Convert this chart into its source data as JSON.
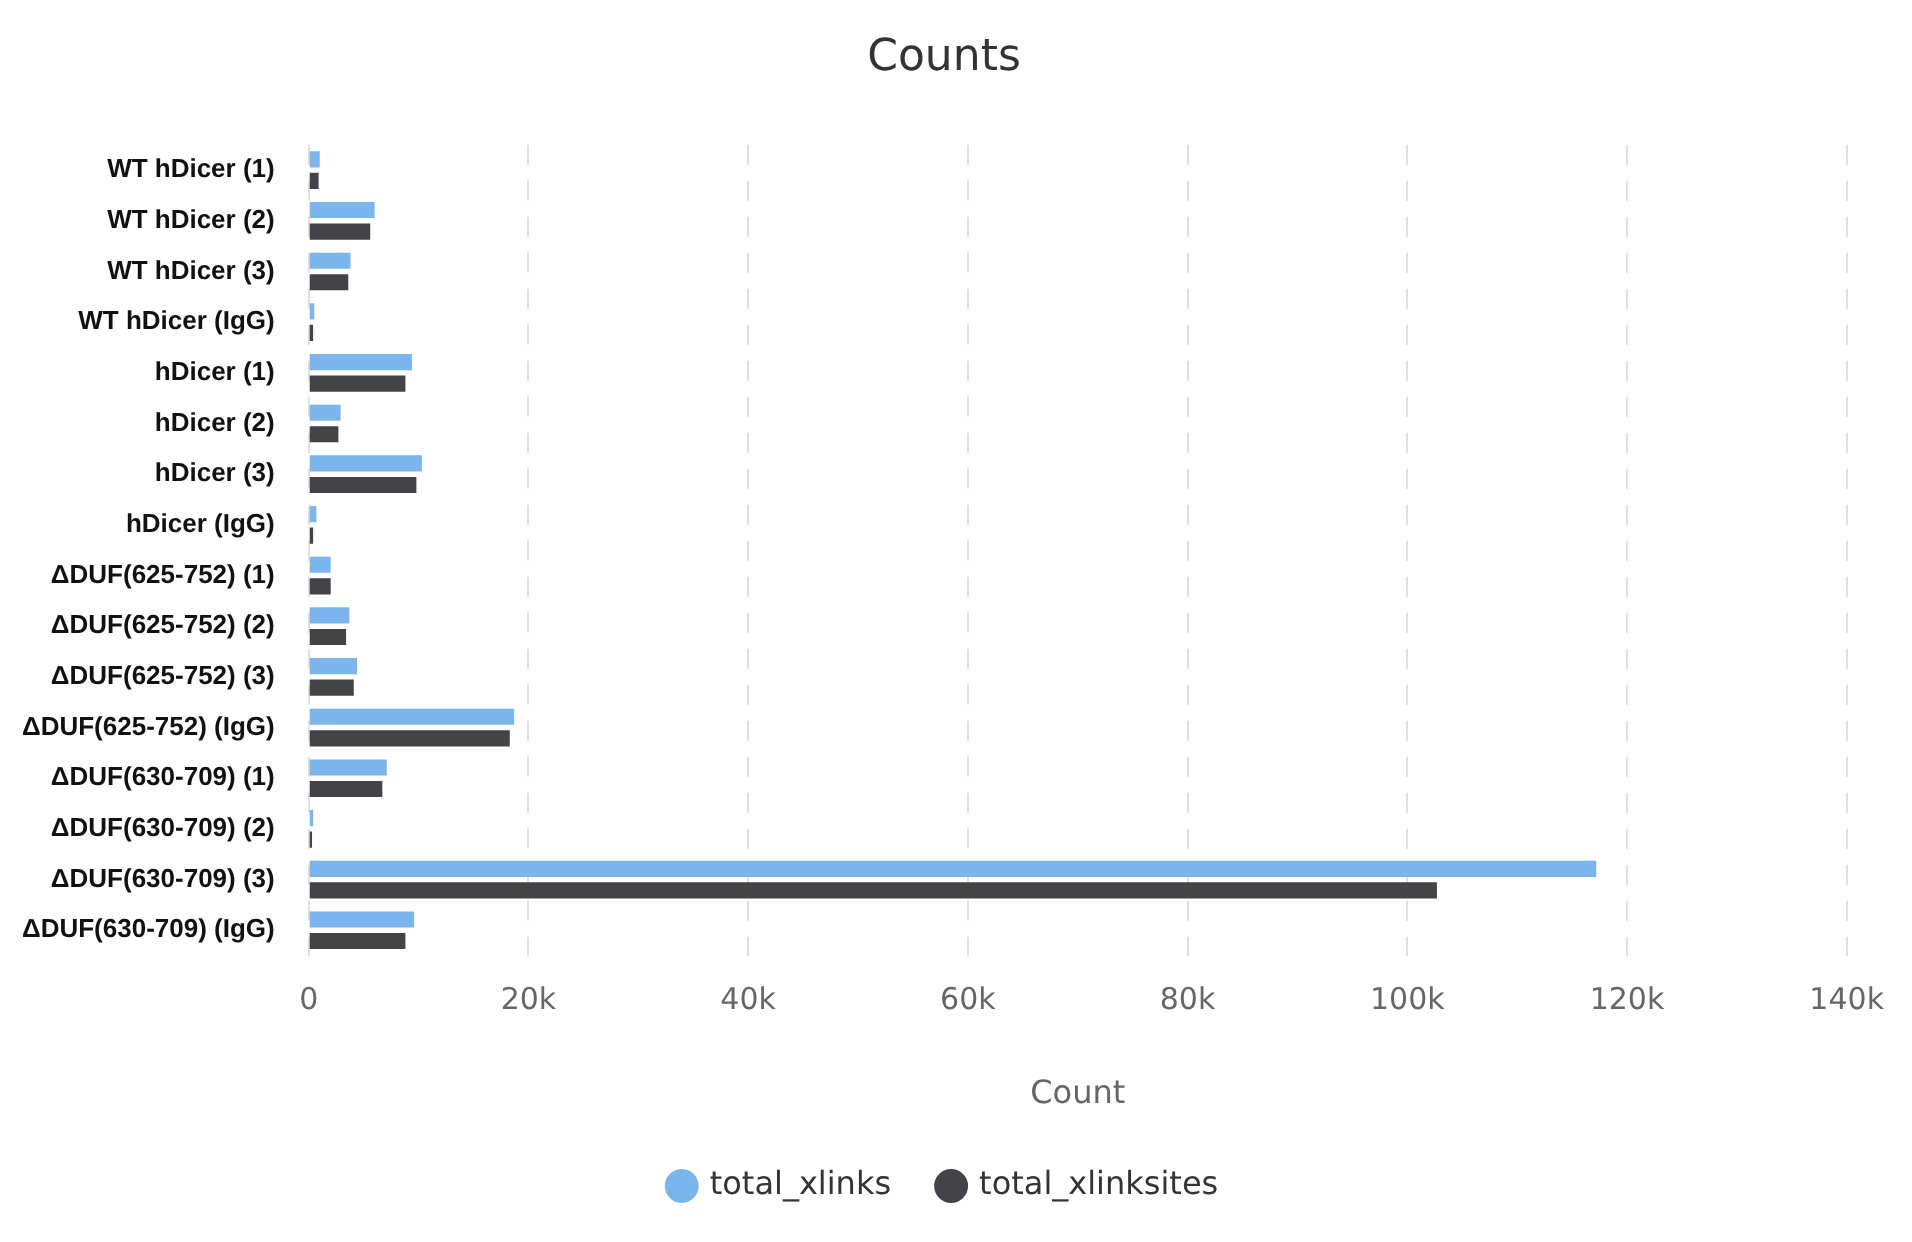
{
  "chart_data": {
    "type": "bar",
    "orientation": "horizontal",
    "title": "Counts",
    "xlabel": "Count",
    "categories": [
      "WT hDicer (1)",
      "WT hDicer (2)",
      "WT hDicer (3)",
      "WT hDicer (IgG)",
      "hDicer (1)",
      "hDicer (2)",
      "hDicer (3)",
      "hDicer (IgG)",
      "ΔDUF(625-752) (1)",
      "ΔDUF(625-752) (2)",
      "ΔDUF(625-752) (3)",
      "ΔDUF(625-752) (IgG)",
      "ΔDUF(630-709) (1)",
      "ΔDUF(630-709) (2)",
      "ΔDUF(630-709) (3)",
      "ΔDUF(630-709) (IgG)"
    ],
    "series": [
      {
        "name": "total_xlinks",
        "color": "#7cb5ec",
        "values": [
          1000,
          6000,
          3800,
          500,
          9400,
          2900,
          10300,
          700,
          2000,
          3700,
          4400,
          18700,
          7100,
          400,
          117200,
          9600
        ]
      },
      {
        "name": "total_xlinksites",
        "color": "#434348",
        "values": [
          900,
          5600,
          3600,
          400,
          8800,
          2700,
          9800,
          400,
          2000,
          3400,
          4100,
          18300,
          6700,
          300,
          102700,
          8800
        ]
      }
    ],
    "xlim": [
      0,
      140000
    ],
    "xticks": [
      {
        "value": 0,
        "label": "0"
      },
      {
        "value": 20000,
        "label": "20k"
      },
      {
        "value": 40000,
        "label": "40k"
      },
      {
        "value": 60000,
        "label": "60k"
      },
      {
        "value": 80000,
        "label": "80k"
      },
      {
        "value": 100000,
        "label": "100k"
      },
      {
        "value": 120000,
        "label": "120k"
      },
      {
        "value": 140000,
        "label": "140k"
      }
    ],
    "grid": "x",
    "legend": "bottom"
  }
}
